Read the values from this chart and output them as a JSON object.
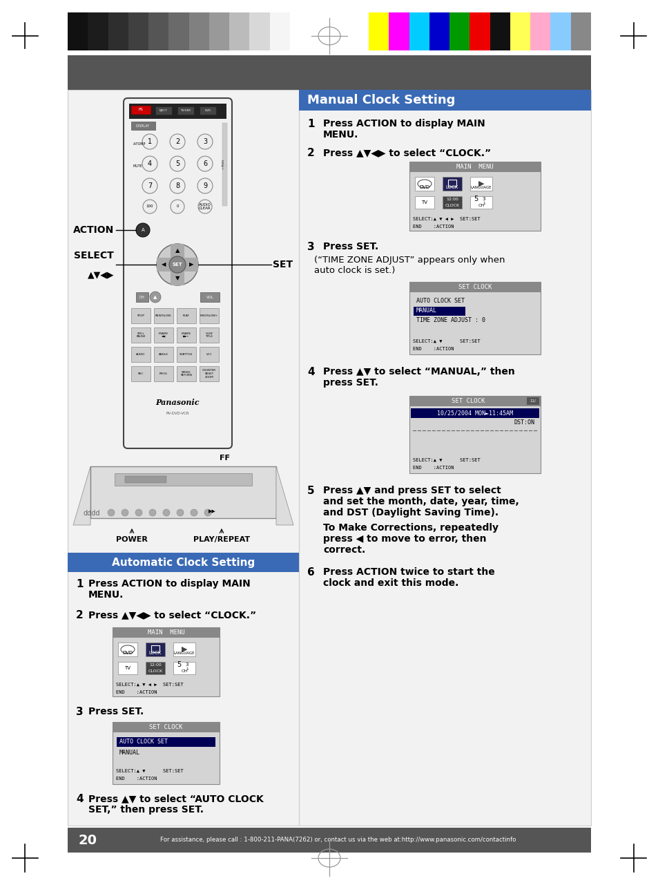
{
  "page_bg": "#ffffff",
  "gray_colors": [
    "#111111",
    "#1c1c1c",
    "#2e2e2e",
    "#404040",
    "#555555",
    "#6a6a6a",
    "#808080",
    "#999999",
    "#bbbbbb",
    "#d8d8d8",
    "#f5f5f5"
  ],
  "color_bars_right": [
    "#ffff00",
    "#ff00ff",
    "#00ccff",
    "#0000cc",
    "#009900",
    "#ee0000",
    "#111111",
    "#ffff55",
    "#ffaacc",
    "#88ccff",
    "#888888"
  ],
  "header_strip_color": "#555555",
  "manual_title": "Manual Clock Setting",
  "manual_title_bg": "#3a6ab5",
  "auto_title": "Automatic Clock Setting",
  "auto_title_bg": "#3a6ab5",
  "screen_bg": "#d4d4d4",
  "screen_header_bg": "#888888",
  "screen_highlight_bg": "#000066",
  "screen_date_highlight_bg": "#000066",
  "left_bg": "#e8e8e8",
  "right_bg": "#f0f0f0",
  "footer_bg": "#555555",
  "footer_text": "For assistance, please call : 1-800-211-PANA(7262) or, contact us via the web at:http://www.panasonic.com/contactinfo",
  "page_number": "20",
  "remote_body_color": "#e0e0e0",
  "remote_border_color": "#555555"
}
